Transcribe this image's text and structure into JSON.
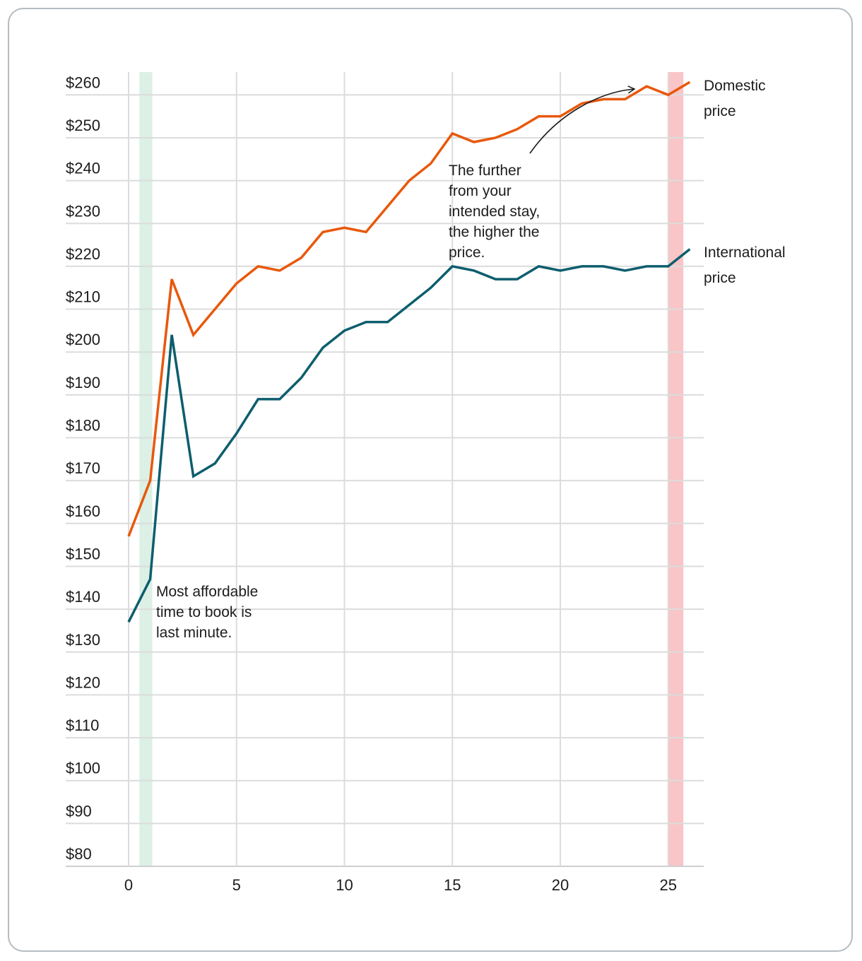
{
  "chart_data": {
    "type": "line",
    "title": "",
    "xlabel": "",
    "ylabel": "",
    "xlim": [
      0,
      26
    ],
    "ylim": [
      80,
      262
    ],
    "x_ticks": [
      "0",
      "5",
      "10",
      "15",
      "20",
      "25"
    ],
    "y_ticks": [
      "$80",
      "$90",
      "$100",
      "$110",
      "$120",
      "$130",
      "$140",
      "$150",
      "$160",
      "$170",
      "$180",
      "$190",
      "$200",
      "$210",
      "$220",
      "$230",
      "$240",
      "$250",
      "$260"
    ],
    "x": [
      0,
      1,
      2,
      3,
      4,
      5,
      6,
      7,
      8,
      9,
      10,
      11,
      12,
      13,
      14,
      15,
      16,
      17,
      18,
      19,
      20,
      21,
      22,
      23,
      24,
      25,
      26
    ],
    "series": [
      {
        "name": "Domestic price",
        "label_lines": [
          "Domestic",
          "price"
        ],
        "color": "#e8580c",
        "values": [
          157,
          170,
          217,
          204,
          210,
          216,
          220,
          219,
          222,
          228,
          229,
          228,
          234,
          240,
          244,
          251,
          249,
          250,
          252,
          255,
          255,
          258,
          259,
          259,
          262,
          260,
          263
        ]
      },
      {
        "name": "International price",
        "label_lines": [
          "International",
          "price"
        ],
        "color": "#0d5e6d",
        "values": [
          137,
          147,
          204,
          171,
          174,
          181,
          189,
          189,
          194,
          201,
          205,
          207,
          207,
          211,
          215,
          220,
          219,
          217,
          217,
          220,
          219,
          220,
          220,
          219,
          220,
          220,
          224
        ]
      }
    ],
    "highlight_bands": [
      {
        "name": "affordable",
        "x_range": [
          0.5,
          1.1
        ],
        "color": "#dcf0e6"
      },
      {
        "name": "expensive",
        "x_range": [
          25,
          25.7
        ],
        "color": "#f9c5c7"
      }
    ],
    "annotations": [
      {
        "name": "last-minute-note",
        "lines": [
          "Most affordable",
          "time to book is",
          "last minute."
        ]
      },
      {
        "name": "further-note",
        "lines": [
          "The further",
          "from your",
          "intended stay,",
          "the higher the",
          "price."
        ]
      }
    ]
  }
}
